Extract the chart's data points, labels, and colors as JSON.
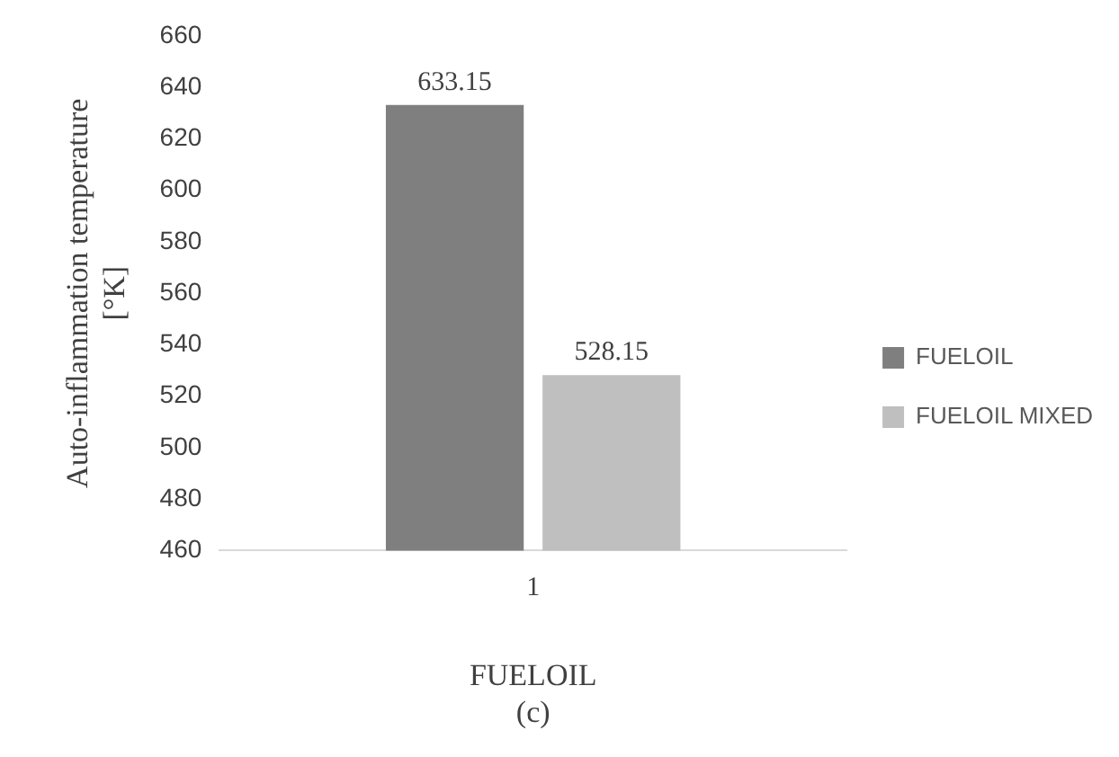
{
  "chart_data": {
    "type": "bar",
    "categories": [
      "1"
    ],
    "series": [
      {
        "name": "FUELOIL",
        "color": "#7f7f7f",
        "values": [
          633.15
        ]
      },
      {
        "name": "FUELOIL MIXED",
        "color": "#bfbfbf",
        "values": [
          528.15
        ]
      }
    ],
    "ylabel": "Auto-inflammation temperature\n[°K]",
    "xlabel": "FUELOIL\n(c)",
    "ylim": [
      460,
      660
    ],
    "yticks": [
      460,
      480,
      500,
      520,
      540,
      560,
      580,
      600,
      620,
      640,
      660
    ],
    "grid": false,
    "legend": "right",
    "data_labels": true
  }
}
